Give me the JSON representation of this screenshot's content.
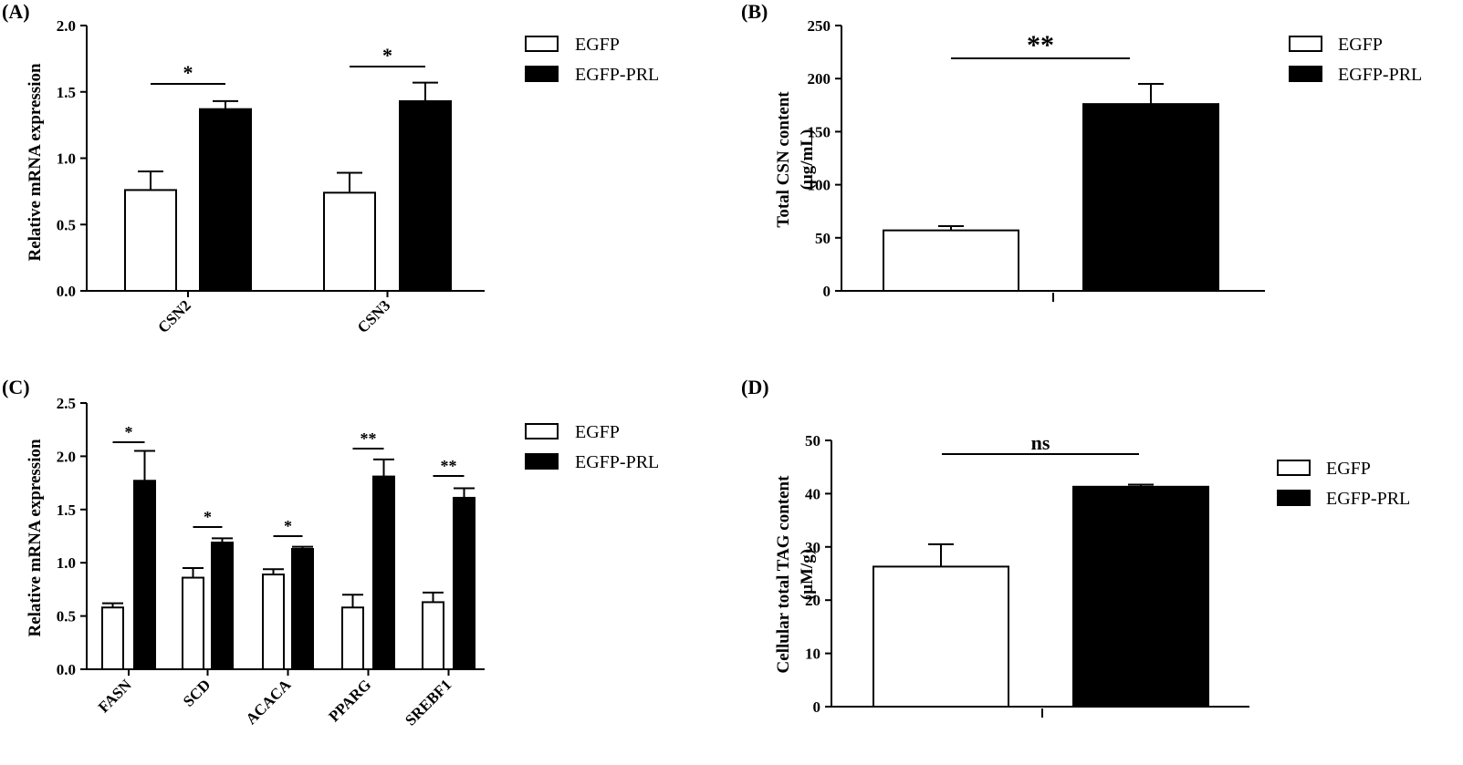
{
  "colors": {
    "EGFP": "#ffffff",
    "EGFP-PRL": "#000000",
    "stroke": "#000000"
  },
  "chart_data": [
    {
      "panel": "(A)",
      "type": "bar",
      "ylabel": "Relative mRNA expression",
      "ylim": [
        0,
        2.0
      ],
      "yticks": [
        "0.0",
        "0.5",
        "1.0",
        "1.5",
        "2.0"
      ],
      "categories": [
        "CSN2",
        "CSN3"
      ],
      "series": [
        {
          "name": "EGFP",
          "values": [
            0.76,
            0.74
          ],
          "errors": [
            0.14,
            0.15
          ]
        },
        {
          "name": "EGFP-PRL",
          "values": [
            1.37,
            1.43
          ],
          "errors": [
            0.06,
            0.14
          ]
        }
      ],
      "significance": [
        "*",
        "*"
      ],
      "legend": [
        "EGFP",
        "EGFP-PRL"
      ]
    },
    {
      "panel": "(B)",
      "type": "bar",
      "ylabel": "Total CSN content",
      "ylabel2": "(μg/mL)",
      "ylim": [
        0,
        250
      ],
      "yticks": [
        "0",
        "50",
        "100",
        "150",
        "200",
        "250"
      ],
      "categories": [
        ""
      ],
      "series": [
        {
          "name": "EGFP",
          "values": [
            57
          ],
          "errors": [
            4
          ]
        },
        {
          "name": "EGFP-PRL",
          "values": [
            176
          ],
          "errors": [
            19
          ]
        }
      ],
      "significance": [
        "**"
      ],
      "legend": [
        "EGFP",
        "EGFP-PRL"
      ]
    },
    {
      "panel": "(C)",
      "type": "bar",
      "ylabel": "Relative mRNA expression",
      "ylim": [
        0,
        2.5
      ],
      "yticks": [
        "0.0",
        "0.5",
        "1.0",
        "1.5",
        "2.0",
        "2.5"
      ],
      "categories": [
        "FASN",
        "SCD",
        "ACACA",
        "PPARG",
        "SREBF1"
      ],
      "series": [
        {
          "name": "EGFP",
          "values": [
            0.58,
            0.86,
            0.89,
            0.58,
            0.63
          ],
          "errors": [
            0.04,
            0.09,
            0.05,
            0.12,
            0.09
          ]
        },
        {
          "name": "EGFP-PRL",
          "values": [
            1.77,
            1.19,
            1.13,
            1.81,
            1.61
          ],
          "errors": [
            0.28,
            0.04,
            0.02,
            0.16,
            0.09
          ]
        }
      ],
      "significance": [
        "*",
        "*",
        "*",
        "**",
        "**"
      ],
      "legend": [
        "EGFP",
        "EGFP-PRL"
      ]
    },
    {
      "panel": "(D)",
      "type": "bar",
      "ylabel": "Cellular total TAG content",
      "ylabel2": "(μM/g)",
      "ylim": [
        0,
        50
      ],
      "yticks": [
        "0",
        "10",
        "20",
        "30",
        "40",
        "50"
      ],
      "categories": [
        ""
      ],
      "series": [
        {
          "name": "EGFP",
          "values": [
            26.3
          ],
          "errors": [
            4.2
          ]
        },
        {
          "name": "EGFP-PRL",
          "values": [
            41.3
          ],
          "errors": [
            0.4
          ]
        }
      ],
      "significance": [
        "ns"
      ],
      "legend": [
        "EGFP",
        "EGFP-PRL"
      ]
    }
  ]
}
